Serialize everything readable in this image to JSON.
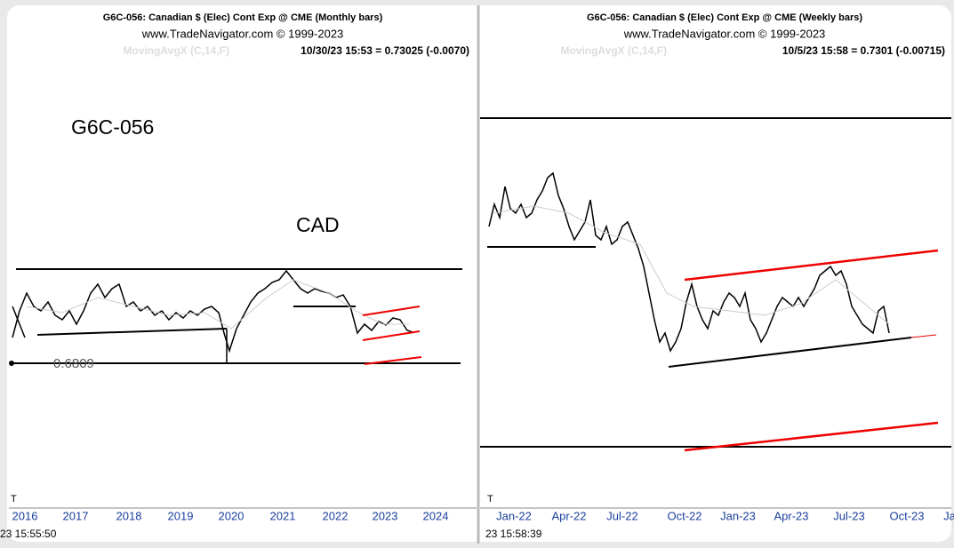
{
  "panels": [
    {
      "title": "G6C-056:  Canadian $ (Elec) Cont Exp @ CME  (Monthly bars)",
      "source": "www.TradeNavigator.com © 1999-2023",
      "indicator": "MovingAvgX (C,14,F)",
      "readout": "10/30/23 15:53 = 0.73025 (-0.0070)",
      "marker": "T",
      "x_labels": [
        "2016",
        "2017",
        "2018",
        "2019",
        "2020",
        "2021",
        "2022",
        "2023",
        "2024"
      ],
      "time": "23 15:55:50"
    },
    {
      "title": "G6C-056:  Canadian $ (Elec) Cont Exp @ CME  (Weekly bars)",
      "source": "www.TradeNavigator.com © 1999-2023",
      "indicator": "MovingAvgX (C,14,F)",
      "readout": "10/5/23 15:58 = 0.7301 (-0.00715)",
      "marker": "T",
      "x_labels": [
        "Jan-22",
        "Apr-22",
        "Jul-22",
        "Oct-22",
        "Jan-23",
        "Apr-23",
        "Jul-23",
        "Oct-23",
        "Ja"
      ],
      "time": "23 15:58:39"
    }
  ],
  "annotations": {
    "symbol": "G6C-056",
    "currency": "CAD",
    "level": "0.6809"
  }
}
